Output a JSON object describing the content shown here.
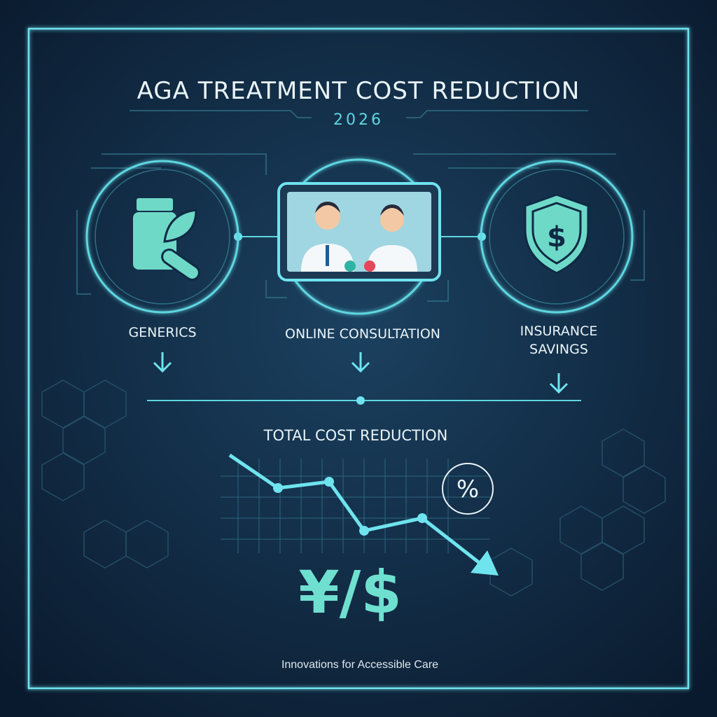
{
  "header": {
    "title": "AGA TREATMENT COST REDUCTION",
    "subtitle": "2026"
  },
  "nodes": [
    {
      "label_lines": [
        "GENERICS"
      ]
    },
    {
      "label_lines": [
        "ONLINE CONSULTATION"
      ]
    },
    {
      "label_lines": [
        "INSURANCE",
        "SAVINGS"
      ],
      "icon": "$"
    }
  ],
  "summary": {
    "title": "TOTAL COST REDUCTION",
    "percent_symbol": "%",
    "currency": "¥/$"
  },
  "footer": "Innovations for Accessible Care"
}
